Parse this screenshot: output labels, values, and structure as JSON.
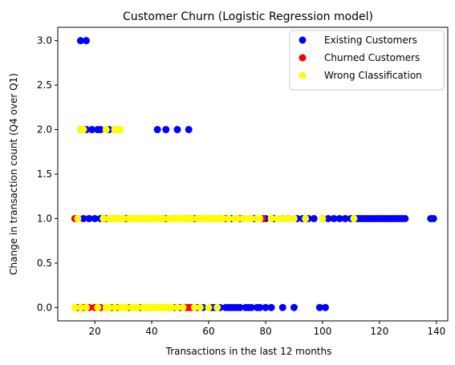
{
  "chart_data": {
    "type": "scatter",
    "title": "Customer Churn (Logistic Regression model)",
    "xlabel": "Transactions in the last 12 months",
    "ylabel": "Change in transaction count (Q4 over Q1)",
    "xlim": [
      7,
      144
    ],
    "ylim": [
      -0.15,
      3.15
    ],
    "xticks": [
      20,
      40,
      60,
      80,
      100,
      120,
      140
    ],
    "yticks": [
      0.0,
      0.5,
      1.0,
      1.5,
      2.0,
      2.5,
      3.0
    ],
    "grid": false,
    "legend_position": "top-right",
    "series": [
      {
        "name": "Existing Customers",
        "color": "#0000ff",
        "points": [
          [
            15,
            3.0
          ],
          [
            17,
            3.0
          ],
          [
            15,
            2.0
          ],
          [
            17,
            2.0
          ],
          [
            19,
            2.0
          ],
          [
            21,
            2.0
          ],
          [
            22,
            2.0
          ],
          [
            25,
            2.0
          ],
          [
            27,
            2.0
          ],
          [
            42,
            2.0
          ],
          [
            45,
            2.0
          ],
          [
            49,
            2.0
          ],
          [
            53,
            2.0
          ],
          [
            16,
            1.0
          ],
          [
            18,
            1.0
          ],
          [
            20,
            1.0
          ],
          [
            22,
            1.0
          ],
          [
            25,
            1.0
          ],
          [
            28,
            1.0
          ],
          [
            31,
            1.0
          ],
          [
            34,
            1.0
          ],
          [
            37,
            1.0
          ],
          [
            40,
            1.0
          ],
          [
            44,
            1.0
          ],
          [
            48,
            1.0
          ],
          [
            52,
            1.0
          ],
          [
            56,
            1.0
          ],
          [
            60,
            1.0
          ],
          [
            64,
            1.0
          ],
          [
            68,
            1.0
          ],
          [
            72,
            1.0
          ],
          [
            76,
            1.0
          ],
          [
            80,
            1.0
          ],
          [
            83,
            1.0
          ],
          [
            86,
            1.0
          ],
          [
            88,
            1.0
          ],
          [
            91,
            1.0
          ],
          [
            93,
            1.0
          ],
          [
            95,
            1.0
          ],
          [
            97,
            1.0
          ],
          [
            100,
            1.0
          ],
          [
            102,
            1.0
          ],
          [
            104,
            1.0
          ],
          [
            106,
            1.0
          ],
          [
            108,
            1.0
          ],
          [
            110,
            1.0
          ],
          [
            112,
            1.0
          ],
          [
            113,
            1.0
          ],
          [
            114,
            1.0
          ],
          [
            115,
            1.0
          ],
          [
            116,
            1.0
          ],
          [
            117,
            1.0
          ],
          [
            118,
            1.0
          ],
          [
            119,
            1.0
          ],
          [
            120,
            1.0
          ],
          [
            121,
            1.0
          ],
          [
            122,
            1.0
          ],
          [
            123,
            1.0
          ],
          [
            124,
            1.0
          ],
          [
            125,
            1.0
          ],
          [
            126,
            1.0
          ],
          [
            127,
            1.0
          ],
          [
            128,
            1.0
          ],
          [
            129,
            1.0
          ],
          [
            138,
            1.0
          ],
          [
            139,
            1.0
          ],
          [
            38,
            0.0
          ],
          [
            42,
            0.0
          ],
          [
            46,
            0.0
          ],
          [
            50,
            0.0
          ],
          [
            56,
            0.0
          ],
          [
            58,
            0.0
          ],
          [
            61,
            0.0
          ],
          [
            62,
            0.0
          ],
          [
            64,
            0.0
          ],
          [
            66,
            0.0
          ],
          [
            67,
            0.0
          ],
          [
            68,
            0.0
          ],
          [
            69,
            0.0
          ],
          [
            70,
            0.0
          ],
          [
            71,
            0.0
          ],
          [
            73,
            0.0
          ],
          [
            74,
            0.0
          ],
          [
            75,
            0.0
          ],
          [
            77,
            0.0
          ],
          [
            78,
            0.0
          ],
          [
            80,
            0.0
          ],
          [
            82,
            0.0
          ],
          [
            86,
            0.0
          ],
          [
            90,
            0.0
          ],
          [
            99,
            0.0
          ],
          [
            101,
            0.0
          ]
        ]
      },
      {
        "name": "Churned Customers",
        "color": "#ff0000",
        "points": [
          [
            13,
            1.0
          ],
          [
            14,
            1.0
          ],
          [
            24,
            1.0
          ],
          [
            31,
            1.0
          ],
          [
            45,
            1.0
          ],
          [
            55,
            1.0
          ],
          [
            66,
            1.0
          ],
          [
            71,
            1.0
          ],
          [
            79,
            1.0
          ],
          [
            14,
            0.0
          ],
          [
            16,
            0.0
          ],
          [
            18,
            0.0
          ],
          [
            20,
            0.0
          ],
          [
            22,
            0.0
          ],
          [
            26,
            0.0
          ],
          [
            28,
            0.0
          ],
          [
            32,
            0.0
          ],
          [
            36,
            0.0
          ],
          [
            40,
            0.0
          ],
          [
            44,
            0.0
          ],
          [
            48,
            0.0
          ],
          [
            52,
            0.0
          ],
          [
            53,
            0.0
          ],
          [
            54,
            0.0
          ]
        ]
      },
      {
        "name": "Wrong Classification",
        "color": "#ffff00",
        "points": [
          [
            15,
            2.0
          ],
          [
            16,
            2.0
          ],
          [
            24,
            2.0
          ],
          [
            27,
            2.0
          ],
          [
            28,
            2.0
          ],
          [
            29,
            2.0
          ],
          [
            14,
            1.0
          ],
          [
            23,
            1.0
          ],
          [
            25,
            1.0
          ],
          [
            26,
            1.0
          ],
          [
            27,
            1.0
          ],
          [
            28,
            1.0
          ],
          [
            29,
            1.0
          ],
          [
            30,
            1.0
          ],
          [
            32,
            1.0
          ],
          [
            33,
            1.0
          ],
          [
            34,
            1.0
          ],
          [
            35,
            1.0
          ],
          [
            36,
            1.0
          ],
          [
            37,
            1.0
          ],
          [
            38,
            1.0
          ],
          [
            39,
            1.0
          ],
          [
            40,
            1.0
          ],
          [
            41,
            1.0
          ],
          [
            42,
            1.0
          ],
          [
            43,
            1.0
          ],
          [
            44,
            1.0
          ],
          [
            46,
            1.0
          ],
          [
            47,
            1.0
          ],
          [
            48,
            1.0
          ],
          [
            49,
            1.0
          ],
          [
            50,
            1.0
          ],
          [
            51,
            1.0
          ],
          [
            52,
            1.0
          ],
          [
            53,
            1.0
          ],
          [
            54,
            1.0
          ],
          [
            56,
            1.0
          ],
          [
            57,
            1.0
          ],
          [
            58,
            1.0
          ],
          [
            59,
            1.0
          ],
          [
            60,
            1.0
          ],
          [
            61,
            1.0
          ],
          [
            62,
            1.0
          ],
          [
            63,
            1.0
          ],
          [
            64,
            1.0
          ],
          [
            65,
            1.0
          ],
          [
            67,
            1.0
          ],
          [
            69,
            1.0
          ],
          [
            70,
            1.0
          ],
          [
            72,
            1.0
          ],
          [
            74,
            1.0
          ],
          [
            75,
            1.0
          ],
          [
            77,
            1.0
          ],
          [
            78,
            1.0
          ],
          [
            82,
            1.0
          ],
          [
            84,
            1.0
          ],
          [
            86,
            1.0
          ],
          [
            88,
            1.0
          ],
          [
            90,
            1.0
          ],
          [
            94,
            1.0
          ],
          [
            100,
            1.0
          ],
          [
            111,
            1.0
          ],
          [
            13,
            0.0
          ],
          [
            15,
            0.0
          ],
          [
            17,
            0.0
          ],
          [
            21,
            0.0
          ],
          [
            24,
            0.0
          ],
          [
            25,
            0.0
          ],
          [
            27,
            0.0
          ],
          [
            29,
            0.0
          ],
          [
            30,
            0.0
          ],
          [
            31,
            0.0
          ],
          [
            33,
            0.0
          ],
          [
            34,
            0.0
          ],
          [
            35,
            0.0
          ],
          [
            37,
            0.0
          ],
          [
            38,
            0.0
          ],
          [
            39,
            0.0
          ],
          [
            40,
            0.0
          ],
          [
            41,
            0.0
          ],
          [
            42,
            0.0
          ],
          [
            43,
            0.0
          ],
          [
            44,
            0.0
          ],
          [
            45,
            0.0
          ],
          [
            46,
            0.0
          ],
          [
            47,
            0.0
          ],
          [
            49,
            0.0
          ],
          [
            51,
            0.0
          ],
          [
            55,
            0.0
          ],
          [
            57,
            0.0
          ],
          [
            60,
            0.0
          ],
          [
            63,
            0.0
          ]
        ]
      }
    ]
  }
}
